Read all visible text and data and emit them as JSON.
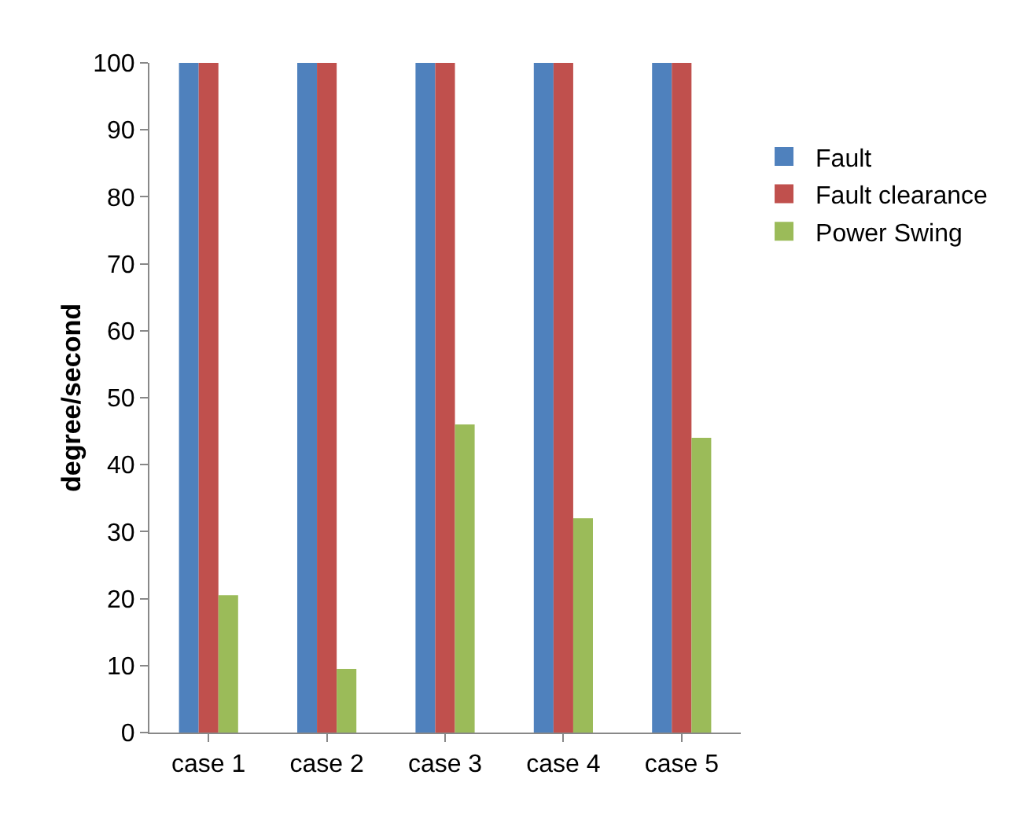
{
  "chart_data": {
    "type": "bar",
    "ylabel": "degree/second",
    "categories": [
      "case 1",
      "case 2",
      "case 3",
      "case 4",
      "case 5"
    ],
    "series": [
      {
        "name": "Fault",
        "color": "#4f81bd",
        "values": [
          100,
          100,
          100,
          100,
          100
        ]
      },
      {
        "name": "Fault clearance",
        "color": "#c0504d",
        "values": [
          100,
          100,
          100,
          100,
          100
        ]
      },
      {
        "name": "Power Swing",
        "color": "#9bbb59",
        "values": [
          20.5,
          9.5,
          46,
          32,
          44
        ]
      }
    ],
    "ylim": [
      0,
      100
    ],
    "yticks": [
      0,
      10,
      20,
      30,
      40,
      50,
      60,
      70,
      80,
      90,
      100
    ],
    "grid": false,
    "legend": "right"
  }
}
